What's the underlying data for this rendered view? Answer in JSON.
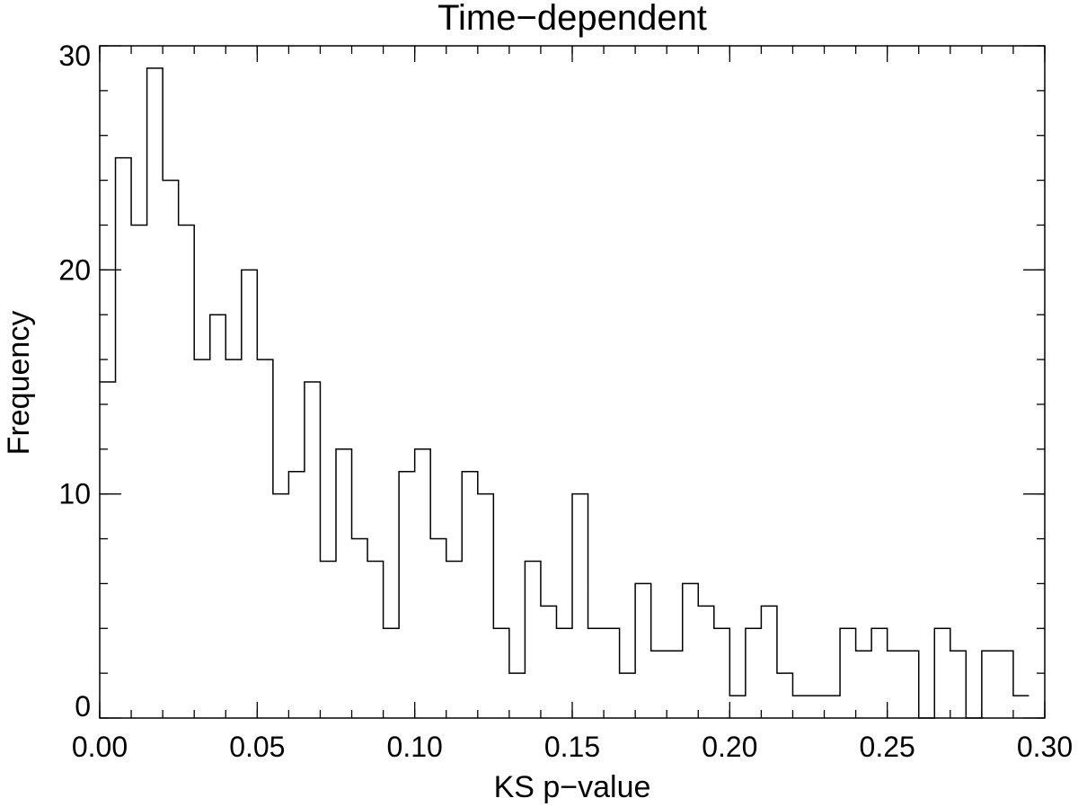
{
  "chart_data": {
    "type": "bar",
    "subtype": "step-histogram",
    "title": "Time−dependent",
    "xlabel": "KS p−value",
    "ylabel": "Frequency",
    "xlim": [
      0,
      0.3
    ],
    "ylim": [
      0,
      30
    ],
    "x_ticks": [
      {
        "value": 0.0,
        "label": "0.00"
      },
      {
        "value": 0.05,
        "label": "0.05"
      },
      {
        "value": 0.1,
        "label": "0.10"
      },
      {
        "value": 0.15,
        "label": "0.15"
      },
      {
        "value": 0.2,
        "label": "0.20"
      },
      {
        "value": 0.25,
        "label": "0.25"
      },
      {
        "value": 0.3,
        "label": "0.30"
      }
    ],
    "y_ticks": [
      {
        "value": 0,
        "label": "0"
      },
      {
        "value": 10,
        "label": "10"
      },
      {
        "value": 20,
        "label": "20"
      },
      {
        "value": 30,
        "label": "30"
      }
    ],
    "x_minor_step": 0.01,
    "y_minor_step": 2,
    "bin_width": 0.005,
    "bin_start": 0.0,
    "values": [
      15,
      25,
      22,
      29,
      24,
      22,
      16,
      18,
      16,
      20,
      16,
      10,
      11,
      15,
      7,
      12,
      8,
      7,
      4,
      11,
      12,
      8,
      7,
      11,
      10,
      4,
      2,
      7,
      5,
      4,
      10,
      4,
      4,
      2,
      6,
      3,
      3,
      6,
      5,
      4,
      1,
      4,
      5,
      2,
      1,
      1,
      1,
      4,
      3,
      4,
      3,
      3,
      0,
      4,
      3,
      0,
      3,
      3,
      1
    ],
    "grid": false,
    "legend": "none",
    "line_color": "#000000"
  }
}
